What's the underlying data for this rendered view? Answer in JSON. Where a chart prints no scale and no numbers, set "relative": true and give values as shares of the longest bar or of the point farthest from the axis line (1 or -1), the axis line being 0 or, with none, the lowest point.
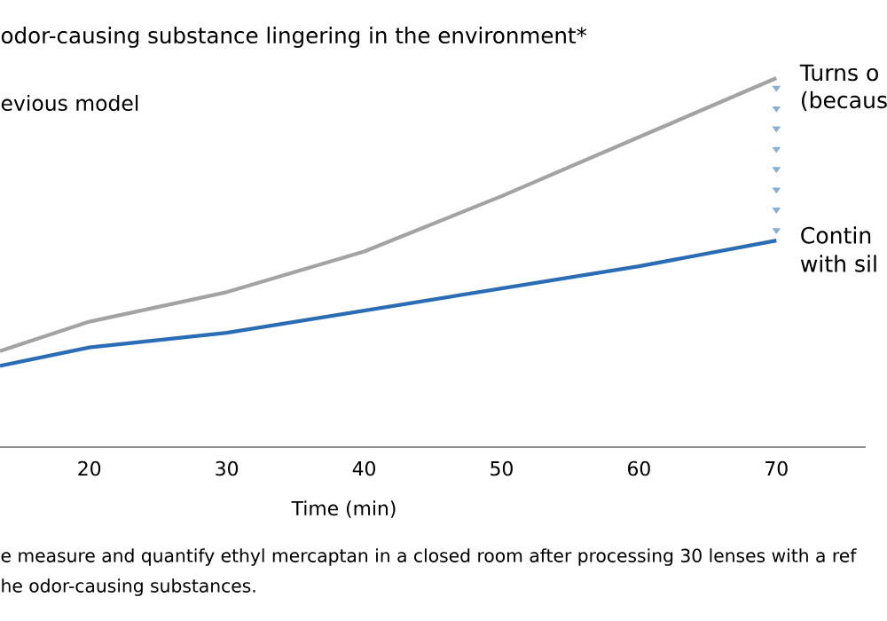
{
  "chart_data": {
    "type": "line",
    "title": "odor-causing substance lingering in the environment*",
    "xlabel": "Time (min)",
    "relative": true,
    "legend": "top left",
    "marker": "none",
    "line_style": "solid",
    "grid": false,
    "tick_labels": "x",
    "xlim": [
      13.5,
      76.5
    ],
    "xticks": [
      20,
      30,
      40,
      50,
      60,
      70
    ],
    "series": [
      {
        "name": "evious model",
        "color": "#a3a3a3",
        "x": [
          13.5,
          20,
          30,
          40,
          50,
          60,
          70
        ],
        "values": [
          0.26,
          0.34,
          0.42,
          0.53,
          0.68,
          0.84,
          1
        ]
      },
      {
        "color": "#2a6db5",
        "x": [
          13.5,
          20,
          30,
          40,
          50,
          60,
          70
        ],
        "values": [
          0.22,
          0.27,
          0.31,
          0.37,
          0.43,
          0.49,
          0.56
        ]
      }
    ],
    "annotations": [
      "Turns o",
      "(becaus",
      "Contin",
      "with sil",
      "e measure and quantify ethyl mercaptan in a closed room after processing 30 lenses with a ref",
      "he odor-causing substances."
    ]
  }
}
